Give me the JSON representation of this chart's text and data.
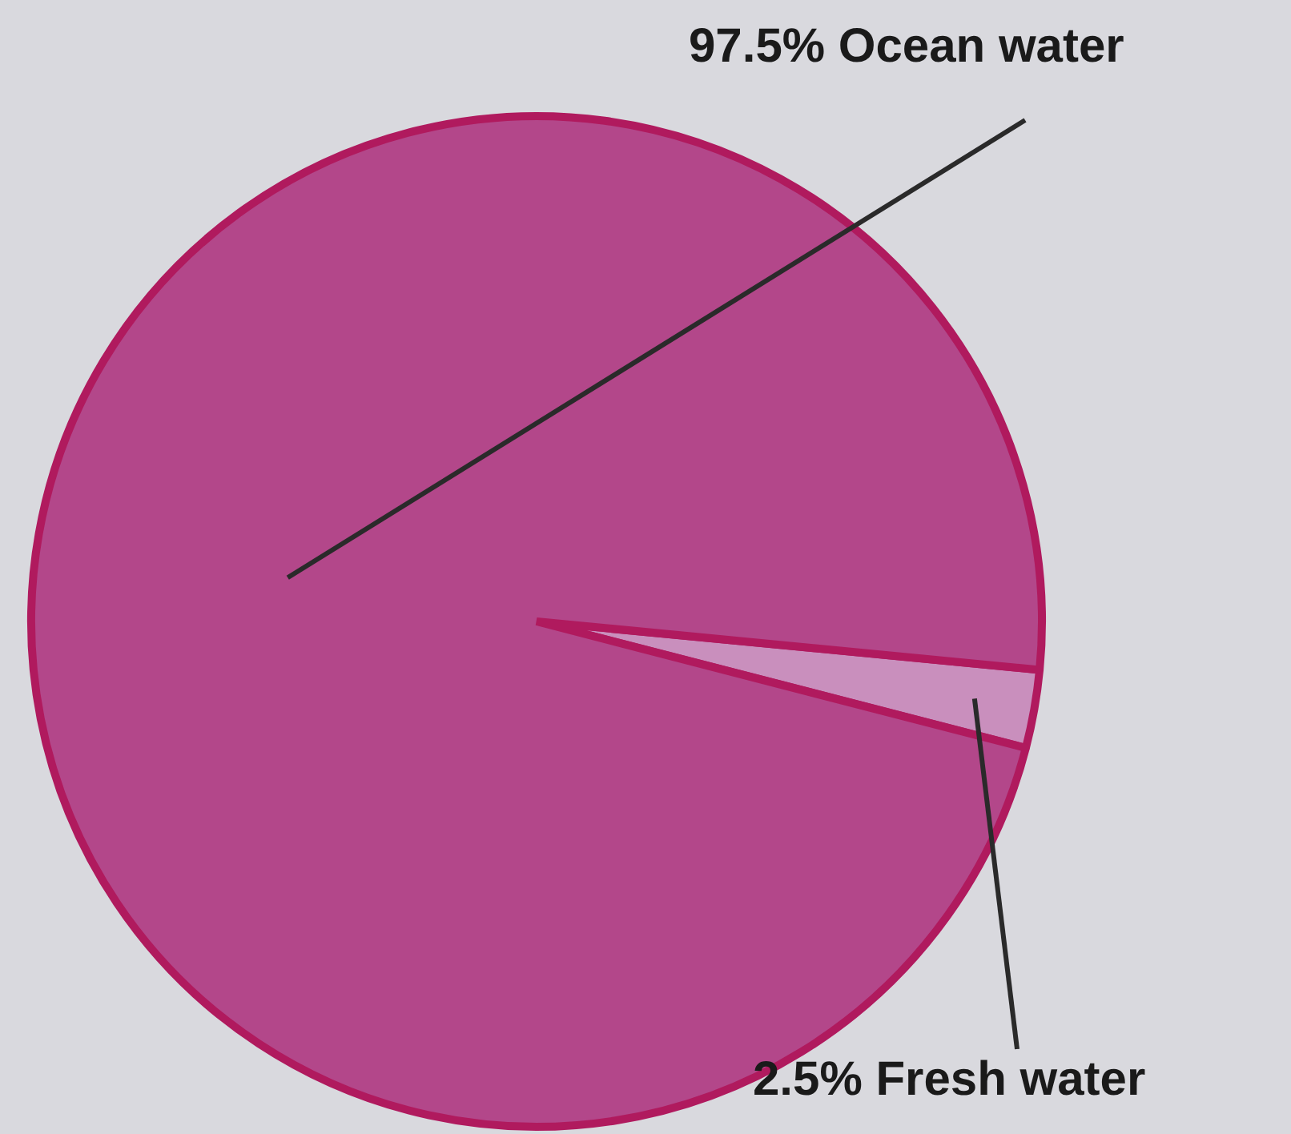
{
  "chart_data": {
    "type": "pie",
    "categories": [
      "Fresh water",
      "Ocean water"
    ],
    "values": [
      2.5,
      97.5
    ],
    "colors": [
      "#c98fbd",
      "#b3478a"
    ],
    "value_labels": [
      "2.5%",
      "97.5%"
    ],
    "legend": false
  }
}
